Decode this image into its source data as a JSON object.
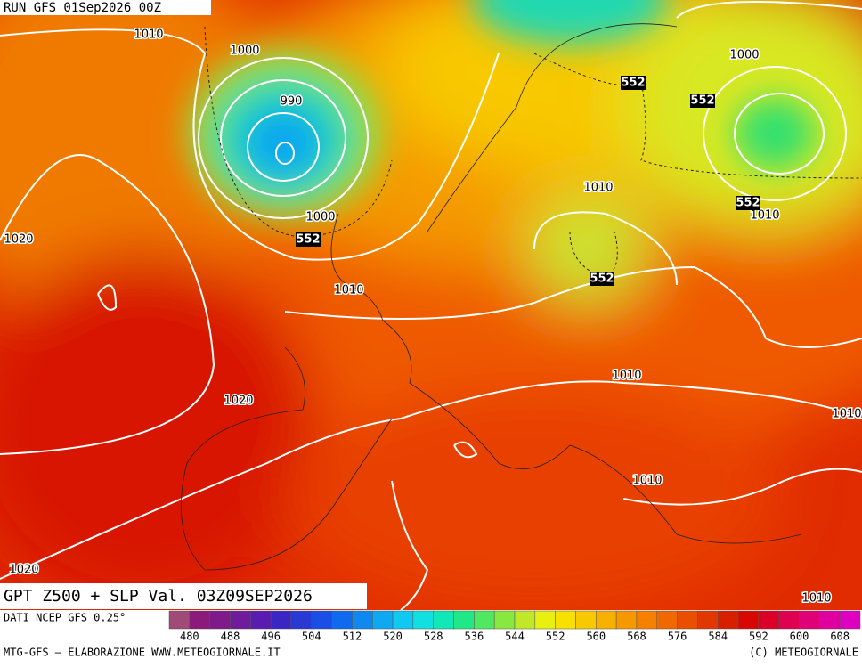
{
  "header": {
    "run": "RUN GFS 01Sep2026 00Z"
  },
  "map": {
    "slp_labels": [
      "1010",
      "1000",
      "990",
      "1000",
      "1010",
      "1020",
      "1020",
      "1020",
      "1000",
      "1010",
      "1010",
      "1010",
      "1010",
      "1010",
      "1010"
    ],
    "z500_labels": [
      "552",
      "552",
      "552",
      "552",
      "552"
    ]
  },
  "footer": {
    "title": "GPT Z500 + SLP Val. 03Z09SEP2026",
    "source": "DATI NCEP GFS 0.25°",
    "scale": [
      480,
      488,
      496,
      504,
      512,
      520,
      528,
      536,
      544,
      552,
      560,
      568,
      576,
      584,
      592,
      600,
      608
    ],
    "credit_left": "MTG-GFS — ELABORAZIONE WWW.METEOGIORNALE.IT",
    "credit_right": "(C) METEOGIORNALE"
  }
}
